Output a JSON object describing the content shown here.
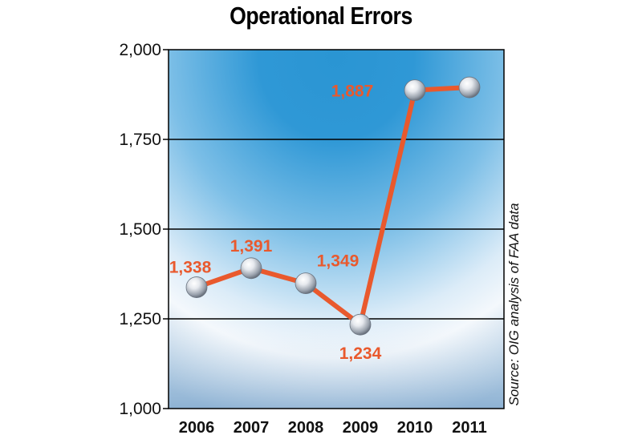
{
  "title": "Operational Errors",
  "source": "Source: OIG analysis of FAA data",
  "colors": {
    "line": "#e9592d",
    "label": "#e9592d",
    "sky_top": "#1f8ccc",
    "sky_mid": "#6fb8e4",
    "sky_light": "#e8f2fa",
    "grid": "#000000"
  },
  "chart_data": {
    "type": "line",
    "title": "Operational Errors",
    "xlabel": "",
    "ylabel": "",
    "categories": [
      "2006",
      "2007",
      "2008",
      "2009",
      "2010",
      "2011"
    ],
    "series": [
      {
        "values": [
          1338,
          1391,
          1349,
          1234,
          1887,
          1895
        ],
        "labels": [
          "1,338",
          "1,391",
          "1,349",
          "1,234",
          "1,887",
          ""
        ]
      }
    ],
    "ylim": [
      1000,
      2000
    ],
    "yticks": [
      1000,
      1250,
      1500,
      1750,
      2000
    ],
    "ytick_labels": [
      "1,000",
      "1,250",
      "1,500",
      "1,750",
      "2,000"
    ],
    "grid": true,
    "legend": "none",
    "annotation": "Source: OIG analysis of FAA data"
  }
}
